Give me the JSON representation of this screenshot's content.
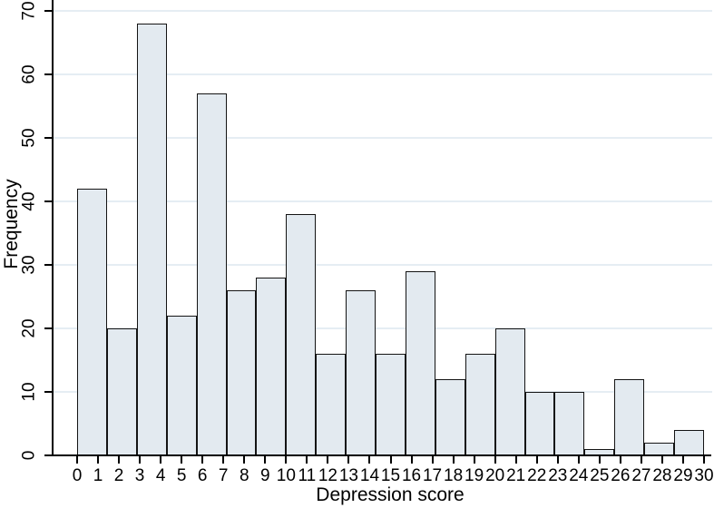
{
  "chart_data": {
    "type": "bar",
    "subtype": "histogram",
    "title": "",
    "xlabel": "Depression score",
    "ylabel": "Frequency",
    "bin_start": 0,
    "bin_width": 1.4285714,
    "values": [
      42,
      20,
      68,
      22,
      57,
      26,
      28,
      38,
      16,
      26,
      16,
      29,
      12,
      16,
      20,
      10,
      10,
      1,
      12,
      2,
      4
    ],
    "xlim": [
      0,
      30
    ],
    "ylim": [
      0,
      71.7
    ],
    "x_ticks": [
      0,
      1,
      2,
      3,
      4,
      5,
      6,
      7,
      8,
      9,
      10,
      11,
      12,
      13,
      14,
      15,
      16,
      17,
      18,
      19,
      20,
      21,
      22,
      23,
      24,
      25,
      26,
      27,
      28,
      29,
      30
    ],
    "y_ticks": [
      0,
      10,
      20,
      30,
      40,
      50,
      60,
      70
    ],
    "grid": true,
    "legend": "none",
    "colors": {
      "bar_fill": "#e3eaf0",
      "bar_border": "#141414",
      "gridline": "#e5edf3",
      "axis": "#000000",
      "text": "#000000",
      "background": "#ffffff"
    }
  }
}
